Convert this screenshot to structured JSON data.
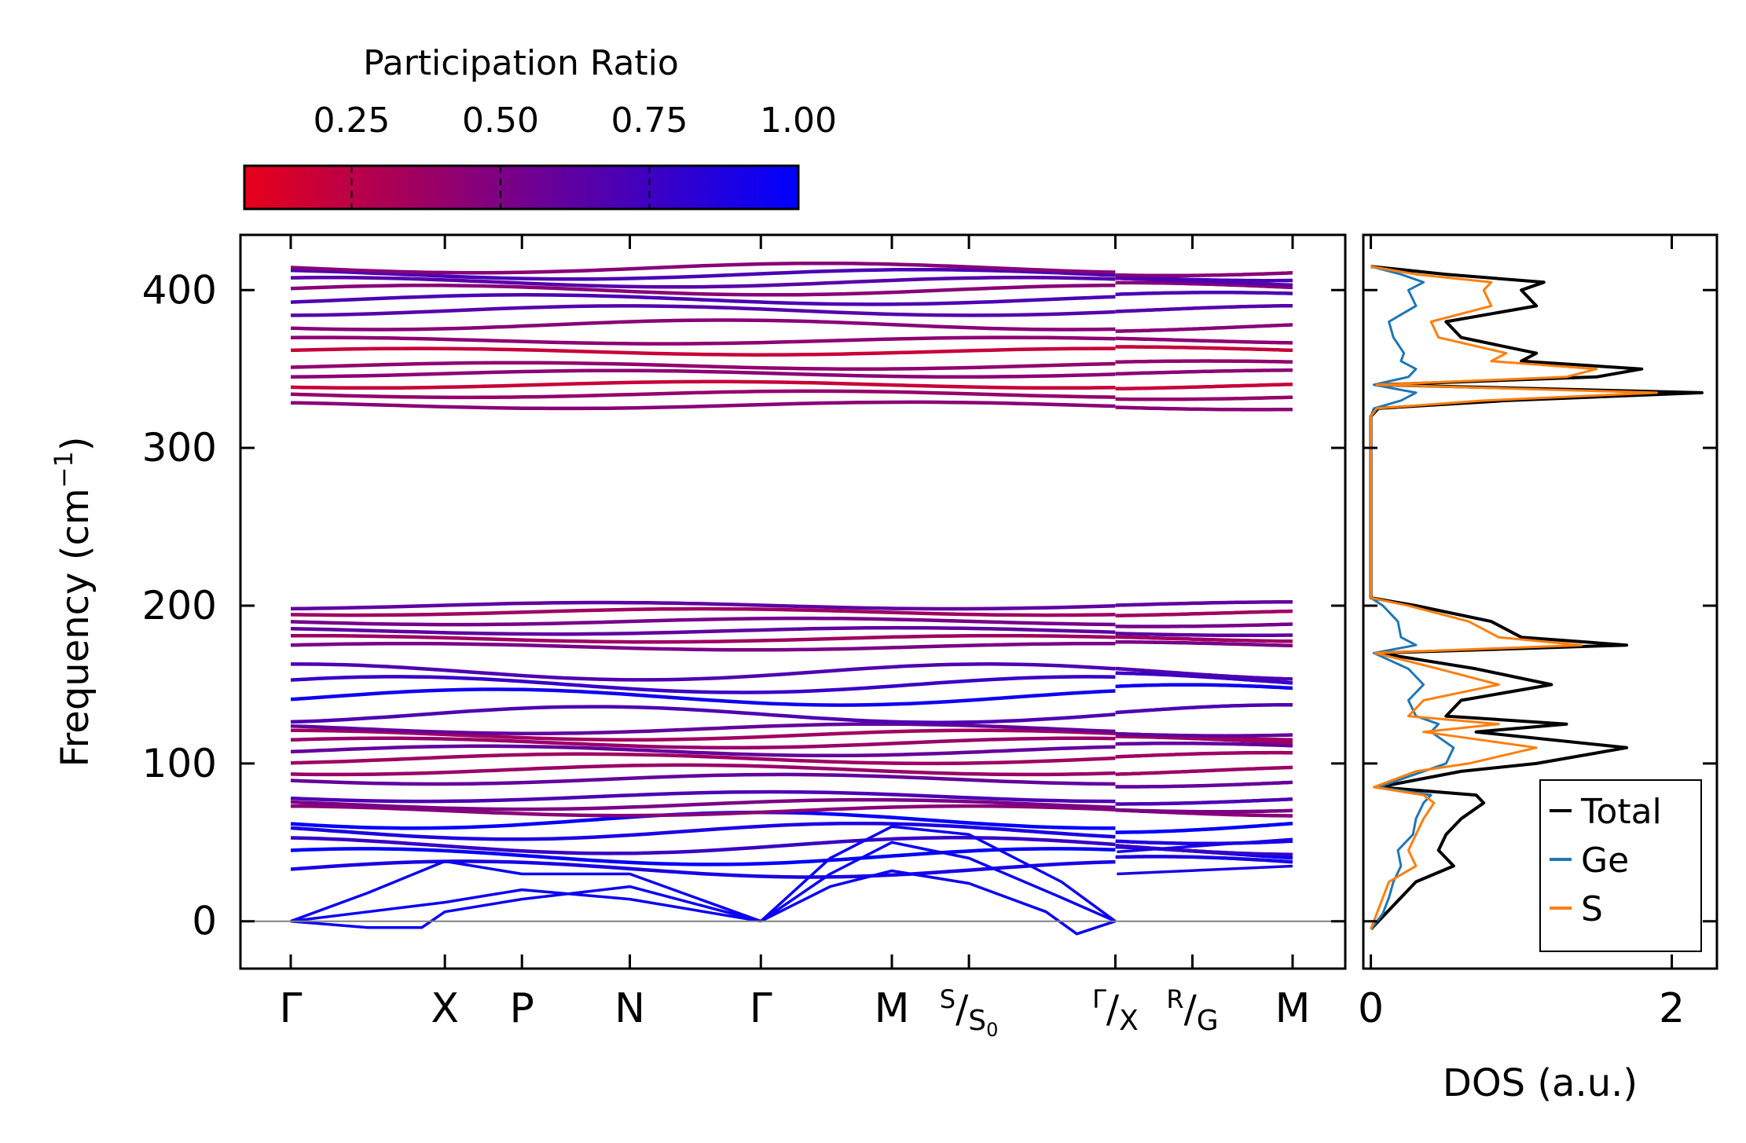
{
  "figure": {
    "colorbar": {
      "title": "Participation Ratio",
      "ticks": [
        0.25,
        0.5,
        0.75,
        1.0
      ],
      "tick_labels": [
        "0.25",
        "0.50",
        "0.75",
        "1.00"
      ],
      "range": [
        0.07,
        1.0
      ],
      "color_low": "#e8001a",
      "color_high": "#0000ff"
    },
    "band_panel": {
      "ylabel": "Frequency (cm",
      "ylabel_sup": "−1",
      "ylabel_close": ")",
      "ylim": [
        -30,
        435
      ],
      "yticks": [
        0,
        100,
        200,
        300,
        400
      ],
      "ytick_labels": [
        "0",
        "100",
        "200",
        "300",
        "400"
      ],
      "kpoints": [
        {
          "pos": 0,
          "label": "Γ"
        },
        {
          "pos": 1.0,
          "label": "X"
        },
        {
          "pos": 1.5,
          "label": "P"
        },
        {
          "pos": 2.2,
          "label": "N"
        },
        {
          "pos": 3.05,
          "label": "Γ"
        },
        {
          "pos": 3.9,
          "label": "M"
        },
        {
          "pos": 4.4,
          "label": "S",
          "sub_label": "S",
          "sub_index": "0"
        },
        {
          "pos": 5.35,
          "label": "Γ",
          "sub_label": "X"
        },
        {
          "pos": 5.85,
          "label": "R",
          "sub_label": "G"
        },
        {
          "pos": 6.5,
          "label": "M"
        }
      ],
      "path_break": 5.35,
      "zero_line_color": "#808080"
    },
    "dos_panel": {
      "xlabel": "DOS (a.u.)",
      "xlim": [
        -0.05,
        2.3
      ],
      "xticks": [
        0,
        2
      ],
      "xtick_labels": [
        "0",
        "2"
      ],
      "legend": [
        {
          "name": "Total",
          "color": "#000000"
        },
        {
          "name": "Ge",
          "color": "#1f77b4"
        },
        {
          "name": "S",
          "color": "#ff7f0e"
        }
      ],
      "legend_position": "lower-right"
    }
  },
  "chart_data": {
    "type": "line",
    "title": "",
    "bands": {
      "xlabel": "",
      "ylabel": "Frequency (cm^-1)",
      "xlim": [
        0,
        6.5
      ],
      "ylim": [
        -30,
        435
      ],
      "acoustic": [
        {
          "x": [
            0,
            0.5,
            0.85,
            1.0,
            1.5,
            2.2,
            3.05
          ],
          "y": [
            0,
            -4,
            -4,
            6,
            14,
            22,
            0
          ],
          "pr": 0.95
        },
        {
          "x": [
            0,
            0.5,
            1.0,
            1.5,
            2.2,
            3.05
          ],
          "y": [
            0,
            6,
            12,
            20,
            14,
            0
          ],
          "pr": 0.95
        },
        {
          "x": [
            0,
            0.5,
            1.0,
            1.5,
            2.2,
            3.05
          ],
          "y": [
            0,
            18,
            38,
            30,
            30,
            0
          ],
          "pr": 0.95
        },
        {
          "x": [
            3.05,
            3.5,
            3.9,
            4.4,
            4.9,
            5.1,
            5.35
          ],
          "y": [
            0,
            22,
            32,
            24,
            6,
            -8,
            0
          ],
          "pr": 0.95
        },
        {
          "x": [
            3.05,
            3.5,
            3.9,
            4.4,
            5.0,
            5.35
          ],
          "y": [
            0,
            30,
            50,
            40,
            15,
            0
          ],
          "pr": 0.95
        },
        {
          "x": [
            3.05,
            3.5,
            3.9,
            4.4,
            5.0,
            5.35
          ],
          "y": [
            0,
            40,
            60,
            55,
            25,
            0
          ],
          "pr": 0.95
        }
      ],
      "groups": [
        {
          "levels": [
            33,
            41,
            48,
            57,
            64
          ],
          "amp": 5,
          "pr": 0.9
        },
        {
          "levels": [
            70,
            74,
            79
          ],
          "amp": 3,
          "pr": 0.55
        },
        {
          "levels": [
            90,
            96,
            103,
            108,
            113,
            118,
            122
          ],
          "amp": 3,
          "pr": 0.45
        },
        {
          "levels": [
            131,
            142,
            150,
            158
          ],
          "amp": 5,
          "pr": 0.8
        },
        {
          "levels": [
            174,
            179,
            184,
            190,
            196,
            200
          ],
          "amp": 2,
          "pr": 0.5
        },
        {
          "levels": [
            327,
            334,
            340,
            347,
            352,
            361,
            368
          ],
          "amp": 2,
          "pr": 0.35
        },
        {
          "levels": [
            378,
            387,
            394,
            400,
            405,
            410,
            414
          ],
          "amp": 3,
          "pr": 0.6
        }
      ]
    },
    "dos": {
      "xlabel": "DOS (a.u.)",
      "xlim": [
        -0.05,
        2.3
      ],
      "series": [
        {
          "name": "Total",
          "freq": [
            -5,
            5,
            15,
            25,
            35,
            45,
            55,
            65,
            75,
            80,
            85,
            95,
            100,
            110,
            120,
            125,
            130,
            140,
            150,
            160,
            170,
            175,
            180,
            190,
            200,
            205,
            320,
            325,
            330,
            335,
            340,
            345,
            350,
            355,
            360,
            370,
            380,
            390,
            400,
            405,
            410,
            415
          ],
          "values": [
            0,
            0.1,
            0.2,
            0.3,
            0.55,
            0.45,
            0.5,
            0.6,
            0.75,
            0.7,
            0.05,
            0.6,
            1.1,
            1.7,
            0.7,
            1.3,
            0.5,
            0.6,
            1.2,
            0.7,
            0.05,
            1.7,
            1.0,
            0.8,
            0.3,
            0,
            0,
            0.05,
            0.9,
            2.2,
            0.05,
            1.5,
            1.8,
            1.0,
            1.1,
            0.6,
            0.5,
            1.1,
            1.0,
            1.15,
            0.5,
            0
          ]
        },
        {
          "name": "Ge",
          "freq": [
            -5,
            5,
            15,
            25,
            35,
            45,
            55,
            65,
            75,
            80,
            85,
            95,
            100,
            110,
            120,
            125,
            130,
            140,
            150,
            160,
            170,
            175,
            180,
            190,
            200,
            205,
            320,
            325,
            330,
            335,
            340,
            345,
            350,
            355,
            360,
            370,
            380,
            390,
            400,
            405,
            410,
            415
          ],
          "values": [
            0,
            0.08,
            0.12,
            0.15,
            0.2,
            0.18,
            0.28,
            0.3,
            0.35,
            0.4,
            0.05,
            0.35,
            0.5,
            0.55,
            0.4,
            0.45,
            0.3,
            0.25,
            0.35,
            0.25,
            0.02,
            0.3,
            0.2,
            0.18,
            0.08,
            0,
            0,
            0.02,
            0.2,
            0.3,
            0.02,
            0.25,
            0.3,
            0.2,
            0.22,
            0.15,
            0.12,
            0.3,
            0.25,
            0.35,
            0.2,
            0
          ]
        },
        {
          "name": "S",
          "freq": [
            -5,
            5,
            15,
            25,
            35,
            45,
            55,
            65,
            75,
            80,
            85,
            95,
            100,
            110,
            120,
            125,
            130,
            140,
            150,
            160,
            170,
            175,
            180,
            190,
            200,
            205,
            320,
            325,
            330,
            335,
            340,
            345,
            350,
            355,
            360,
            370,
            380,
            390,
            400,
            405,
            410,
            415
          ],
          "values": [
            0,
            0.04,
            0.08,
            0.12,
            0.3,
            0.25,
            0.3,
            0.35,
            0.42,
            0.35,
            0.02,
            0.3,
            0.65,
            1.1,
            0.35,
            0.85,
            0.25,
            0.35,
            0.85,
            0.45,
            0.03,
            1.4,
            0.85,
            0.65,
            0.25,
            0,
            0,
            0.04,
            0.75,
            1.9,
            0.04,
            1.3,
            1.5,
            0.8,
            0.9,
            0.45,
            0.4,
            0.8,
            0.75,
            0.8,
            0.3,
            0
          ]
        }
      ]
    }
  }
}
